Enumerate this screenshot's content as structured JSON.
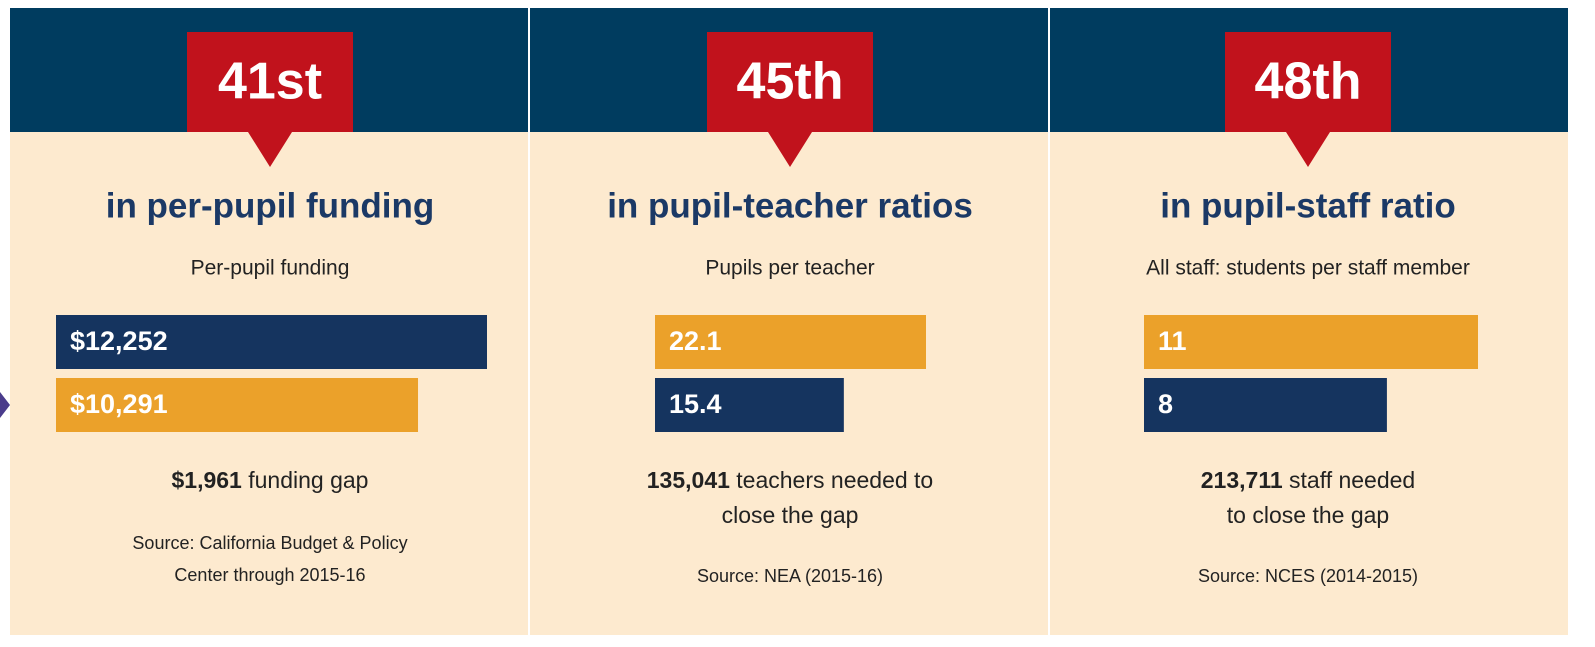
{
  "chart_data": [
    {
      "type": "bar",
      "rank": "41st",
      "title": "in per-pupil funding",
      "subtitle": "Per-pupil funding",
      "values": [
        12252,
        10291
      ],
      "value_labels": [
        "$12,252",
        "$10,291"
      ],
      "colors": [
        "#15345f",
        "#eba12a"
      ],
      "highlight": "$1,961",
      "note_lines": [
        "funding gap"
      ],
      "source_lines": [
        "Source: California Budget & Policy",
        "Center through 2015-16"
      ]
    },
    {
      "type": "bar",
      "rank": "45th",
      "title": "in pupil-teacher ratios",
      "subtitle": "Pupils per teacher",
      "values": [
        22.1,
        15.4
      ],
      "colors": [
        "#eba12a",
        "#15345f"
      ],
      "highlight": "135,041",
      "note_lines": [
        "teachers needed to",
        "close the gap"
      ],
      "source_lines": [
        "Source: NEA (2015-16)"
      ]
    },
    {
      "type": "bar",
      "rank": "48th",
      "title": "in pupil-staff ratio",
      "subtitle": "All staff: students per staff member",
      "values": [
        11,
        8
      ],
      "colors": [
        "#eba12a",
        "#15345f"
      ],
      "highlight": "213,711",
      "note_lines": [
        "staff needed",
        "to close the gap"
      ],
      "source_lines": [
        "Source: NCES (2014-2015)"
      ]
    }
  ]
}
